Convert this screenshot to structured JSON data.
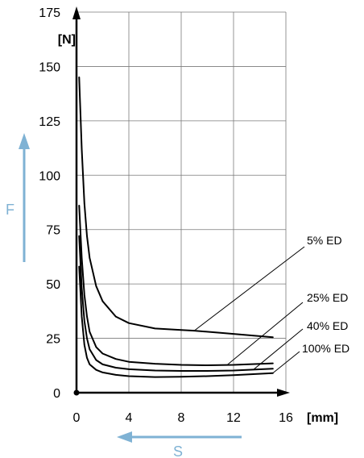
{
  "chart_data": {
    "type": "line",
    "x_unit": "[mm]",
    "y_unit": "[N]",
    "xlim": [
      0,
      16
    ],
    "ylim": [
      0,
      175
    ],
    "x_ticks": [
      "0",
      "4",
      "8",
      "12",
      "16"
    ],
    "y_ticks": [
      "0",
      "25",
      "50",
      "75",
      "100",
      "125",
      "150",
      "175"
    ],
    "grid": true,
    "y_variable": "F",
    "x_variable": "S",
    "arrow_color": "#7fb2d4",
    "line_color": "#000000",
    "series": [
      {
        "name": "5% ED",
        "x": [
          0.2,
          0.4,
          0.6,
          0.8,
          1.0,
          1.5,
          2,
          3,
          4,
          6,
          8,
          9,
          11,
          13,
          15
        ],
        "y": [
          145,
          112,
          87,
          72,
          62,
          49,
          42,
          35,
          32,
          29.5,
          28.8,
          28.5,
          27.5,
          26.5,
          25.5
        ]
      },
      {
        "name": "25% ED",
        "x": [
          0.2,
          0.4,
          0.6,
          0.8,
          1.0,
          1.5,
          2,
          3,
          4,
          6,
          8,
          10,
          12,
          15
        ],
        "y": [
          86,
          62,
          45,
          35,
          28,
          21,
          18,
          15.5,
          14.2,
          13.3,
          12.8,
          12.6,
          12.8,
          13.5
        ]
      },
      {
        "name": "40% ED",
        "x": [
          0.2,
          0.4,
          0.6,
          0.8,
          1.0,
          1.5,
          2,
          3,
          4,
          6,
          8,
          10,
          12,
          15
        ],
        "y": [
          72,
          48,
          33,
          25,
          20,
          15,
          13,
          11.5,
          10.8,
          10.2,
          10.0,
          10.0,
          10.2,
          11
        ]
      },
      {
        "name": "100% ED",
        "x": [
          0.2,
          0.4,
          0.6,
          0.8,
          1.0,
          1.5,
          2,
          3,
          4,
          6,
          8,
          10,
          12,
          15
        ],
        "y": [
          58,
          35,
          22,
          16,
          13,
          10.5,
          9.3,
          8.2,
          7.6,
          7.2,
          7.3,
          7.6,
          8.1,
          9
        ]
      }
    ]
  }
}
